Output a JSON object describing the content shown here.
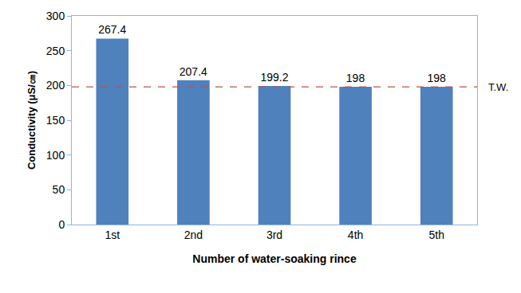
{
  "chart_data": {
    "type": "bar",
    "x_label": "Number of water-soaking rince",
    "y_label": "Conductivity (μS/㎝)",
    "categories": [
      "1st",
      "2nd",
      "3rd",
      "4th",
      "5th"
    ],
    "values": [
      267.4,
      207.4,
      199.2,
      198,
      198
    ],
    "color": "#4f81bd",
    "ylim": [
      0,
      300
    ],
    "yticks": [
      0,
      50,
      100,
      150,
      200,
      250,
      300
    ],
    "grid": false,
    "data_labels": true,
    "reference_line": {
      "value": 198,
      "label": "T.W.",
      "color": "#c0504d",
      "line_style": "dashed"
    }
  }
}
